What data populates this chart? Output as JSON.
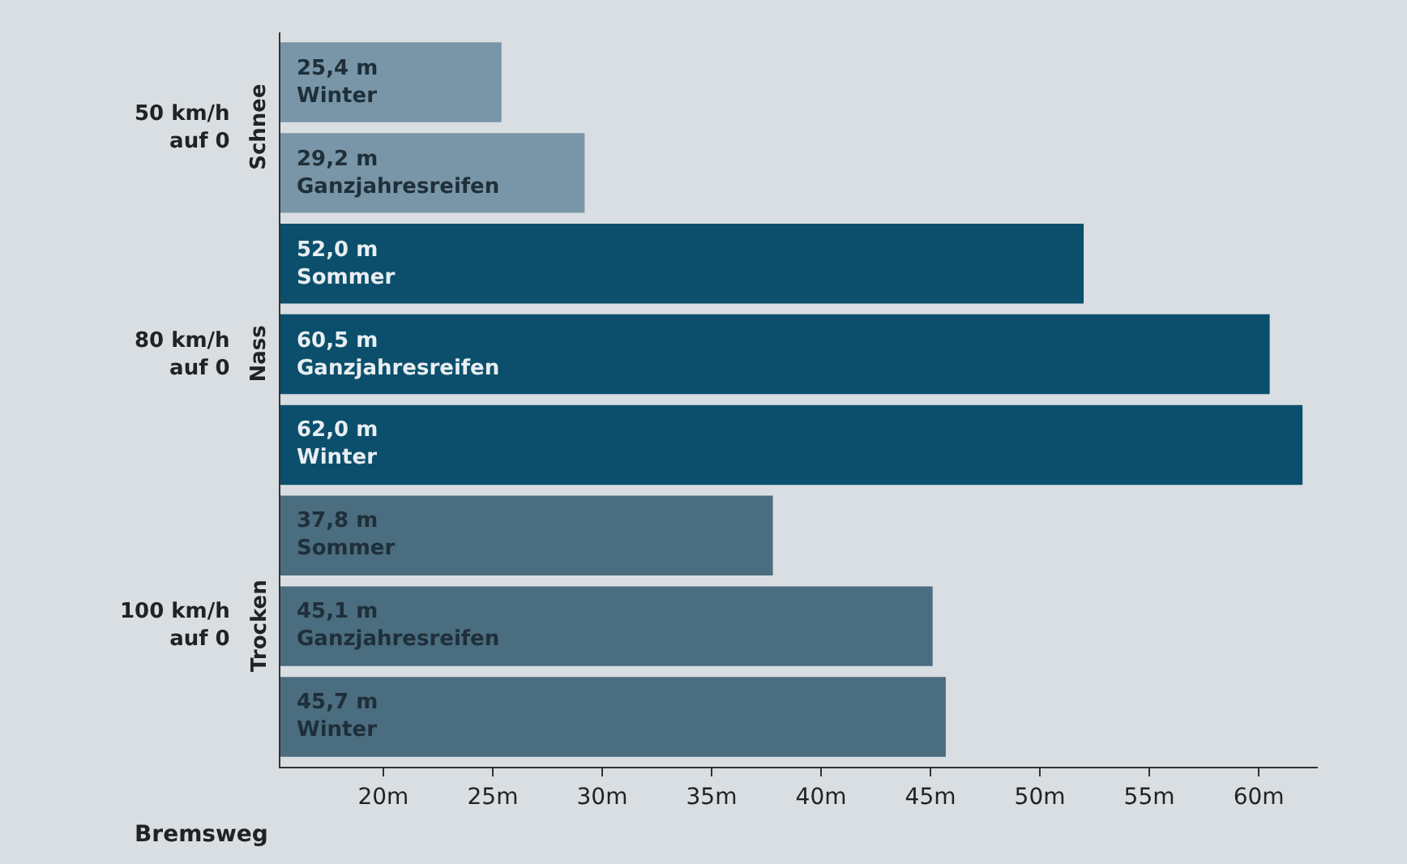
{
  "chart_data": {
    "type": "bar",
    "orientation": "horizontal",
    "categories": [
      "Winter",
      "Ganzjahresreifen",
      "Sommer",
      "Ganzjahresreifen",
      "Winter",
      "Sommer",
      "Ganzjahresreifen",
      "Winter"
    ],
    "values": [
      25.4,
      29.2,
      52.0,
      60.5,
      62.0,
      37.8,
      45.1,
      45.7
    ],
    "value_labels": [
      "25,4 m",
      "29,2 m",
      "52,0 m",
      "60,5 m",
      "62,0 m",
      "37,8 m",
      "45,1 m",
      "45,7 m"
    ],
    "colors": [
      "#7896a7",
      "#7896a7",
      "#0b4f6c",
      "#0b4f6c",
      "#0b4f6c",
      "#4a6d7f",
      "#4a6d7f",
      "#4a6d7f"
    ],
    "xlabel": "Bremsweg",
    "xlim": [
      15.3,
      62.7
    ],
    "xticks": [
      {
        "value": 20,
        "label": "20m"
      },
      {
        "value": 25,
        "label": "25m"
      },
      {
        "value": 30,
        "label": "30m"
      },
      {
        "value": 35,
        "label": "35m"
      },
      {
        "value": 40,
        "label": "40m"
      },
      {
        "value": 45,
        "label": "45m"
      },
      {
        "value": 50,
        "label": "50m"
      },
      {
        "value": 55,
        "label": "55m"
      },
      {
        "value": 60,
        "label": "60m"
      }
    ],
    "tick_labels": "x",
    "grid": false,
    "legend": false,
    "annotations": [
      "50 km/h\nauf 0",
      "Schnee",
      "80 km/h\nauf 0",
      "Nass",
      "100 km/h\nauf 0",
      "Trocken"
    ]
  }
}
